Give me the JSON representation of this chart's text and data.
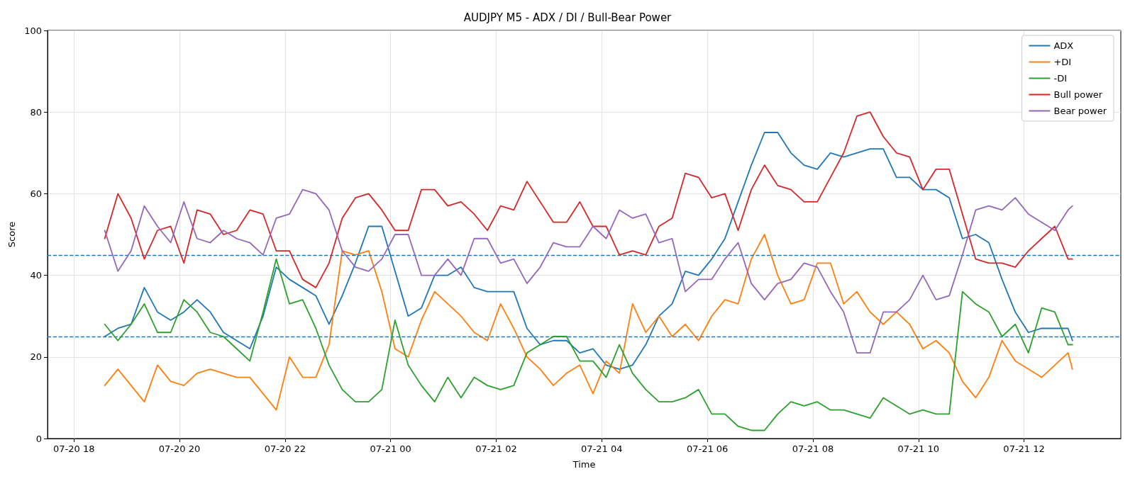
{
  "chart_data": {
    "type": "line",
    "title": "AUDJPY M5 - ADX / DI / Bull-Bear Power",
    "xlabel": "Time",
    "ylabel": "Score",
    "x": [
      "--07-20T18:35",
      "--07-20T18:50",
      "--07-20T19:05",
      "--07-20T19:20",
      "--07-20T19:35",
      "--07-20T19:50",
      "--07-20T20:05",
      "--07-20T20:20",
      "--07-20T20:35",
      "--07-20T20:50",
      "--07-20T21:05",
      "--07-20T21:20",
      "--07-20T21:35",
      "--07-20T21:50",
      "--07-20T22:05",
      "--07-20T22:20",
      "--07-20T22:35",
      "--07-20T22:50",
      "--07-20T23:05",
      "--07-20T23:20",
      "--07-20T23:35",
      "--07-20T23:50",
      "--07-21T00:05",
      "--07-21T00:20",
      "--07-21T00:35",
      "--07-21T00:50",
      "--07-21T01:05",
      "--07-21T01:20",
      "--07-21T01:35",
      "--07-21T01:50",
      "--07-21T02:05",
      "--07-21T02:20",
      "--07-21T02:35",
      "--07-21T02:50",
      "--07-21T03:05",
      "--07-21T03:20",
      "--07-21T03:35",
      "--07-21T03:50",
      "--07-21T04:05",
      "--07-21T04:20",
      "--07-21T04:35",
      "--07-21T04:50",
      "--07-21T05:05",
      "--07-21T05:20",
      "--07-21T05:35",
      "--07-21T05:50",
      "--07-21T06:05",
      "--07-21T06:20",
      "--07-21T06:35",
      "--07-21T06:50",
      "--07-21T07:05",
      "--07-21T07:20",
      "--07-21T07:35",
      "--07-21T07:50",
      "--07-21T08:05",
      "--07-21T08:20",
      "--07-21T08:35",
      "--07-21T08:50",
      "--07-21T09:05",
      "--07-21T09:20",
      "--07-21T09:35",
      "--07-21T09:50",
      "--07-21T10:05",
      "--07-21T10:20",
      "--07-21T10:35",
      "--07-21T10:50",
      "--07-21T11:05",
      "--07-21T11:20",
      "--07-21T11:35",
      "--07-21T11:50",
      "--07-21T12:05",
      "--07-21T12:20",
      "--07-21T12:35",
      "--07-21T12:50",
      "--07-21T12:55"
    ],
    "series": [
      {
        "name": "ADX",
        "color": "#1f77b4",
        "values": [
          25,
          27,
          28,
          37,
          31,
          29,
          31,
          34,
          31,
          26,
          24,
          22,
          30,
          42,
          39,
          37,
          35,
          28,
          35,
          43,
          52,
          52,
          41,
          30,
          32,
          40,
          40,
          42,
          37,
          36,
          36,
          36,
          27,
          23,
          24,
          24,
          21,
          22,
          18,
          17,
          18,
          23,
          30,
          33,
          41,
          40,
          44,
          49,
          58,
          67,
          75,
          75,
          70,
          67,
          66,
          70,
          69,
          70,
          71,
          71,
          64,
          64,
          61,
          61,
          59,
          49,
          50,
          48,
          39,
          31,
          26,
          27,
          27,
          27,
          24
        ]
      },
      {
        "name": "+DI",
        "color": "#ff7f0e",
        "values": [
          13,
          17,
          13,
          9,
          18,
          14,
          13,
          16,
          17,
          16,
          15,
          15,
          11,
          7,
          20,
          15,
          15,
          23,
          46,
          45,
          46,
          36,
          22,
          20,
          29,
          36,
          33,
          30,
          26,
          24,
          33,
          27,
          20,
          17,
          13,
          16,
          18,
          11,
          19,
          16,
          33,
          26,
          30,
          25,
          28,
          24,
          30,
          34,
          33,
          44,
          50,
          40,
          33,
          34,
          43,
          43,
          33,
          36,
          31,
          28,
          31,
          28,
          22,
          24,
          21,
          14,
          10,
          15,
          24,
          19,
          17,
          15,
          18,
          21,
          17
        ]
      },
      {
        "name": "-DI",
        "color": "#2ca02c",
        "values": [
          28,
          24,
          28,
          33,
          26,
          26,
          34,
          31,
          26,
          25,
          22,
          19,
          31,
          44,
          33,
          34,
          27,
          18,
          12,
          9,
          9,
          12,
          29,
          18,
          13,
          9,
          15,
          10,
          15,
          13,
          12,
          13,
          21,
          23,
          25,
          25,
          19,
          19,
          15,
          23,
          16,
          12,
          9,
          9,
          10,
          12,
          6,
          6,
          3,
          2,
          2,
          6,
          9,
          8,
          9,
          7,
          7,
          6,
          5,
          10,
          8,
          6,
          7,
          6,
          6,
          36,
          33,
          31,
          25,
          28,
          21,
          32,
          31,
          23,
          23
        ]
      },
      {
        "name": "Bull power",
        "color": "#d62728",
        "values": [
          49,
          60,
          54,
          44,
          51,
          52,
          43,
          56,
          55,
          50,
          51,
          56,
          55,
          46,
          46,
          39,
          37,
          43,
          54,
          59,
          60,
          56,
          51,
          51,
          61,
          61,
          57,
          58,
          55,
          51,
          57,
          56,
          63,
          58,
          53,
          53,
          58,
          52,
          52,
          45,
          46,
          45,
          52,
          54,
          65,
          64,
          59,
          60,
          51,
          61,
          67,
          62,
          61,
          58,
          58,
          64,
          70,
          79,
          80,
          74,
          70,
          69,
          61,
          66,
          66,
          55,
          44,
          43,
          43,
          42,
          46,
          49,
          52,
          44,
          44
        ]
      },
      {
        "name": "Bear power",
        "color": "#9467bd",
        "values": [
          51,
          41,
          46,
          57,
          52,
          48,
          58,
          49,
          48,
          51,
          49,
          48,
          45,
          54,
          55,
          61,
          60,
          56,
          46,
          42,
          41,
          44,
          50,
          50,
          40,
          40,
          44,
          40,
          49,
          49,
          43,
          44,
          38,
          42,
          48,
          47,
          47,
          52,
          49,
          56,
          54,
          55,
          48,
          49,
          36,
          39,
          39,
          44,
          48,
          38,
          34,
          38,
          39,
          43,
          42,
          36,
          31,
          21,
          21,
          31,
          31,
          34,
          40,
          34,
          35,
          45,
          56,
          57,
          56,
          59,
          55,
          53,
          51,
          56,
          57
        ]
      }
    ],
    "xlim": [
      "--07-20T17:30",
      "--07-21T13:50"
    ],
    "xticks": [
      {
        "value": "--07-20T18:00",
        "label": "07-20 18"
      },
      {
        "value": "--07-20T20:00",
        "label": "07-20 20"
      },
      {
        "value": "--07-20T22:00",
        "label": "07-20 22"
      },
      {
        "value": "--07-21T00:00",
        "label": "07-21 00"
      },
      {
        "value": "--07-21T02:00",
        "label": "07-21 02"
      },
      {
        "value": "--07-21T04:00",
        "label": "07-21 04"
      },
      {
        "value": "--07-21T06:00",
        "label": "07-21 06"
      },
      {
        "value": "--07-21T08:00",
        "label": "07-21 08"
      },
      {
        "value": "--07-21T10:00",
        "label": "07-21 10"
      },
      {
        "value": "--07-21T12:00",
        "label": "07-21 12"
      }
    ],
    "ylim": [
      0,
      100
    ],
    "yticks": [
      0,
      20,
      40,
      60,
      80,
      100
    ],
    "ref_lines": [
      {
        "axis": "y",
        "value": 45,
        "color": "#1f77b4",
        "line_style": "dashed"
      },
      {
        "axis": "y",
        "value": 25,
        "color": "#1f77b4",
        "line_style": "dashed"
      }
    ],
    "grid": true,
    "legend": "top right",
    "marker": "none",
    "line_style": "solid"
  }
}
